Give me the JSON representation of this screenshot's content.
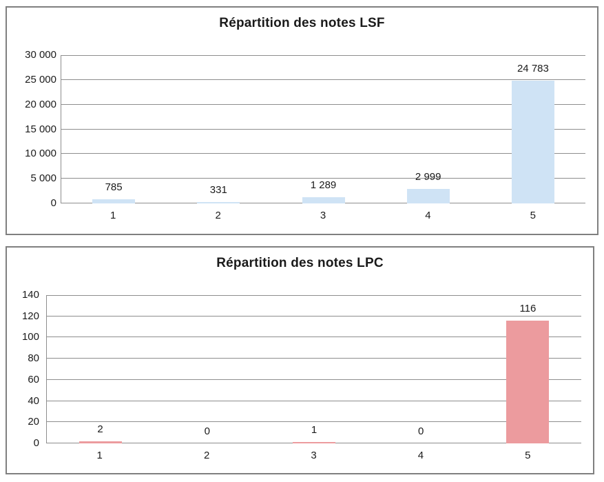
{
  "colors": {
    "lsf_bar": "#CFE3F5",
    "lpc_bar": "#EC9B9E",
    "gridline": "#8D8D8D",
    "panel_border": "#7F7F7F",
    "text": "#1A1A1A",
    "background": "#FFFFFF"
  },
  "chart_data": [
    {
      "type": "bar",
      "title": "Répartition des notes LSF",
      "categories": [
        "1",
        "2",
        "3",
        "4",
        "5"
      ],
      "values": [
        785,
        331,
        1289,
        2999,
        24783
      ],
      "value_labels": [
        "785",
        "331",
        "1 289",
        "2 999",
        "24 783"
      ],
      "xlabel": "",
      "ylabel": "",
      "ylim": [
        0,
        30000
      ],
      "ytick_step": 5000,
      "ytick_labels": [
        "0",
        "5 000",
        "10 000",
        "15 000",
        "20 000",
        "25 000",
        "30 000"
      ],
      "grid": true,
      "legend": "none",
      "bar_color": "#CFE3F5"
    },
    {
      "type": "bar",
      "title": "Répartition des notes LPC",
      "categories": [
        "1",
        "2",
        "3",
        "4",
        "5"
      ],
      "values": [
        2,
        0,
        1,
        0,
        116
      ],
      "value_labels": [
        "2",
        "0",
        "1",
        "0",
        "116"
      ],
      "xlabel": "",
      "ylabel": "",
      "ylim": [
        0,
        140
      ],
      "ytick_step": 20,
      "ytick_labels": [
        "0",
        "20",
        "40",
        "60",
        "80",
        "100",
        "120",
        "140"
      ],
      "grid": true,
      "legend": "none",
      "bar_color": "#EC9B9E"
    }
  ]
}
